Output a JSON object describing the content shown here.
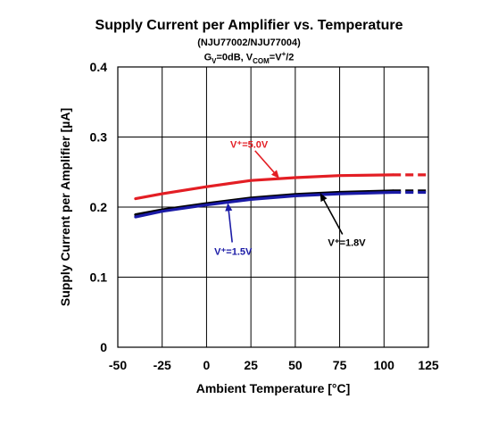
{
  "chart_data": {
    "type": "line",
    "title": "Supply Current per Amplifier vs. Temperature",
    "subtitle1": "(NJU77002/NJU77004)",
    "subtitle2_parts": {
      "g": "G",
      "g_sub": "V",
      "g_tail": "=0dB, V",
      "vcom_sub": "COM",
      "vcom_tail": "=V",
      "vcom_sup": "+",
      "end": "/2"
    },
    "xlabel": "Ambient Temperature [°C]",
    "ylabel": "Supply Current per Amplifier [µA]",
    "xlim": [
      -50,
      125
    ],
    "ylim": [
      0,
      0.4
    ],
    "x_ticks": [
      -50,
      -25,
      0,
      25,
      50,
      75,
      100,
      125
    ],
    "y_ticks": [
      0,
      0.1,
      0.2,
      0.3,
      0.4
    ],
    "x_tick_labels": [
      "-50",
      "-25",
      "0",
      "25",
      "50",
      "75",
      "100",
      "125"
    ],
    "y_tick_labels": [
      "0",
      "0.1",
      "0.2",
      "0.3",
      "0.4"
    ],
    "grid": true,
    "series": [
      {
        "name": "V⁺=5.0V",
        "color": "#e31e24",
        "x": [
          -40,
          -25,
          0,
          25,
          50,
          75,
          105
        ],
        "y": [
          0.212,
          0.219,
          0.229,
          0.238,
          0.242,
          0.245,
          0.246
        ],
        "extrapolated": {
          "x": [
            105,
            125
          ],
          "y": [
            0.246,
            0.246
          ]
        }
      },
      {
        "name": "V⁺=1.8V",
        "color": "#000000",
        "x": [
          -40,
          -25,
          0,
          25,
          50,
          75,
          105
        ],
        "y": [
          0.189,
          0.196,
          0.205,
          0.213,
          0.218,
          0.221,
          0.223
        ],
        "extrapolated": {
          "x": [
            105,
            125
          ],
          "y": [
            0.223,
            0.223
          ]
        }
      },
      {
        "name": "V⁺=1.5V",
        "color": "#1a1aa6",
        "x": [
          -40,
          -25,
          0,
          25,
          50,
          75,
          105
        ],
        "y": [
          0.186,
          0.194,
          0.203,
          0.211,
          0.216,
          0.219,
          0.221
        ],
        "extrapolated": {
          "x": [
            105,
            125
          ],
          "y": [
            0.221,
            0.221
          ]
        }
      }
    ],
    "annotations": [
      {
        "text": "V⁺=5.0V",
        "color": "#e31e24",
        "label_at": [
          24,
          0.29
        ],
        "arrow_to": [
          41,
          0.241
        ]
      },
      {
        "text": "V⁺=1.5V",
        "color": "#1a1aa6",
        "label_at": [
          15,
          0.137
        ],
        "arrow_to": [
          12,
          0.206
        ]
      },
      {
        "text": "V⁺=1.8V",
        "color": "#000000",
        "label_at": [
          79,
          0.15
        ],
        "arrow_to": [
          64,
          0.22
        ]
      }
    ]
  }
}
